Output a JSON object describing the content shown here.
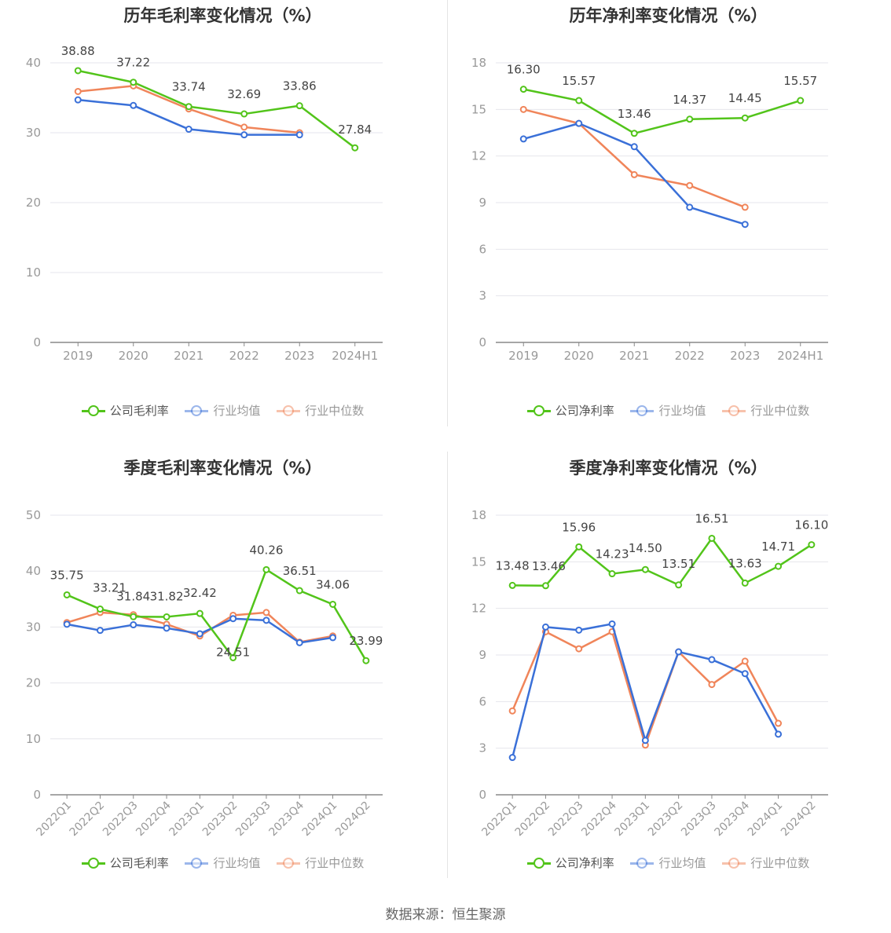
{
  "source_text": "数据来源：恒生聚源",
  "colors": {
    "company": "#52c41a",
    "avg": "#3a70d8",
    "median": "#f0855a",
    "grid": "#e6e6ec",
    "axis": "#999999",
    "label": "#444444"
  },
  "chart_data": [
    {
      "type": "line",
      "title": "历年毛利率变化情况（%）",
      "categories": [
        "2019",
        "2020",
        "2021",
        "2022",
        "2023",
        "2024H1"
      ],
      "ylim": [
        0,
        40
      ],
      "yticks": [
        0,
        10,
        20,
        30,
        40
      ],
      "series": [
        {
          "name": "公司毛利率",
          "key": "company",
          "values": [
            38.88,
            37.22,
            33.74,
            32.69,
            33.86,
            27.84
          ],
          "labels": [
            "38.88",
            "37.22",
            "33.74",
            "32.69",
            "33.86",
            "27.84"
          ]
        },
        {
          "name": "行业均值",
          "key": "avg",
          "values": [
            34.7,
            33.9,
            30.5,
            29.7,
            29.7,
            null
          ]
        },
        {
          "name": "行业中位数",
          "key": "median",
          "values": [
            35.9,
            36.7,
            33.4,
            30.8,
            30.0,
            null
          ]
        }
      ],
      "legend": "bottom"
    },
    {
      "type": "line",
      "title": "历年净利率变化情况（%）",
      "categories": [
        "2019",
        "2020",
        "2021",
        "2022",
        "2023",
        "2024H1"
      ],
      "ylim": [
        0,
        18
      ],
      "yticks": [
        0,
        3,
        6,
        9,
        12,
        15,
        18
      ],
      "series": [
        {
          "name": "公司净利率",
          "key": "company",
          "values": [
            16.3,
            15.57,
            13.46,
            14.37,
            14.45,
            15.57
          ],
          "labels": [
            "16.30",
            "15.57",
            "13.46",
            "14.37",
            "14.45",
            "15.57"
          ]
        },
        {
          "name": "行业均值",
          "key": "avg",
          "values": [
            13.1,
            14.1,
            12.6,
            8.7,
            7.6,
            null
          ]
        },
        {
          "name": "行业中位数",
          "key": "median",
          "values": [
            15.0,
            14.1,
            10.8,
            10.1,
            8.7,
            null
          ]
        }
      ],
      "legend": "bottom"
    },
    {
      "type": "line",
      "title": "季度毛利率变化情况（%）",
      "categories": [
        "2022Q1",
        "2022Q2",
        "2022Q3",
        "2022Q4",
        "2023Q1",
        "2023Q2",
        "2023Q3",
        "2023Q4",
        "2024Q1",
        "2024Q2"
      ],
      "ylim": [
        0,
        50
      ],
      "yticks": [
        0,
        10,
        20,
        30,
        40,
        50
      ],
      "series": [
        {
          "name": "公司毛利率",
          "key": "company",
          "values": [
            35.75,
            33.21,
            31.84,
            31.82,
            32.42,
            24.51,
            40.26,
            36.51,
            34.06,
            23.99
          ],
          "labels": [
            "35.75",
            "33.21",
            "31.84",
            "31.82",
            "32.42",
            "24.51",
            "40.26",
            "36.51",
            "34.06",
            "23.99"
          ]
        },
        {
          "name": "行业均值",
          "key": "avg",
          "values": [
            30.5,
            29.4,
            30.4,
            29.8,
            28.8,
            31.5,
            31.2,
            27.2,
            28.1,
            null
          ]
        },
        {
          "name": "行业中位数",
          "key": "median",
          "values": [
            30.8,
            32.6,
            32.2,
            30.5,
            28.4,
            32.1,
            32.6,
            27.3,
            28.4,
            null
          ]
        }
      ],
      "legend": "bottom"
    },
    {
      "type": "line",
      "title": "季度净利率变化情况（%）",
      "categories": [
        "2022Q1",
        "2022Q2",
        "2022Q3",
        "2022Q4",
        "2023Q1",
        "2023Q2",
        "2023Q3",
        "2023Q4",
        "2024Q1",
        "2024Q2"
      ],
      "ylim": [
        0,
        18
      ],
      "yticks": [
        0,
        3,
        6,
        9,
        12,
        15,
        18
      ],
      "series": [
        {
          "name": "公司净利率",
          "key": "company",
          "values": [
            13.48,
            13.46,
            15.96,
            14.23,
            14.5,
            13.51,
            16.51,
            13.63,
            14.71,
            16.1
          ],
          "labels": [
            "13.48",
            "13.46",
            "15.96",
            "14.23",
            "14.50",
            "13.51",
            "16.51",
            "13.63",
            "14.71",
            "16.10"
          ]
        },
        {
          "name": "行业均值",
          "key": "avg",
          "values": [
            2.4,
            10.8,
            10.6,
            11.0,
            3.5,
            9.2,
            8.7,
            7.8,
            3.9,
            null
          ]
        },
        {
          "name": "行业中位数",
          "key": "median",
          "values": [
            5.4,
            10.5,
            9.4,
            10.5,
            3.2,
            9.2,
            7.1,
            8.6,
            4.6,
            null
          ]
        }
      ],
      "legend": "bottom"
    }
  ]
}
